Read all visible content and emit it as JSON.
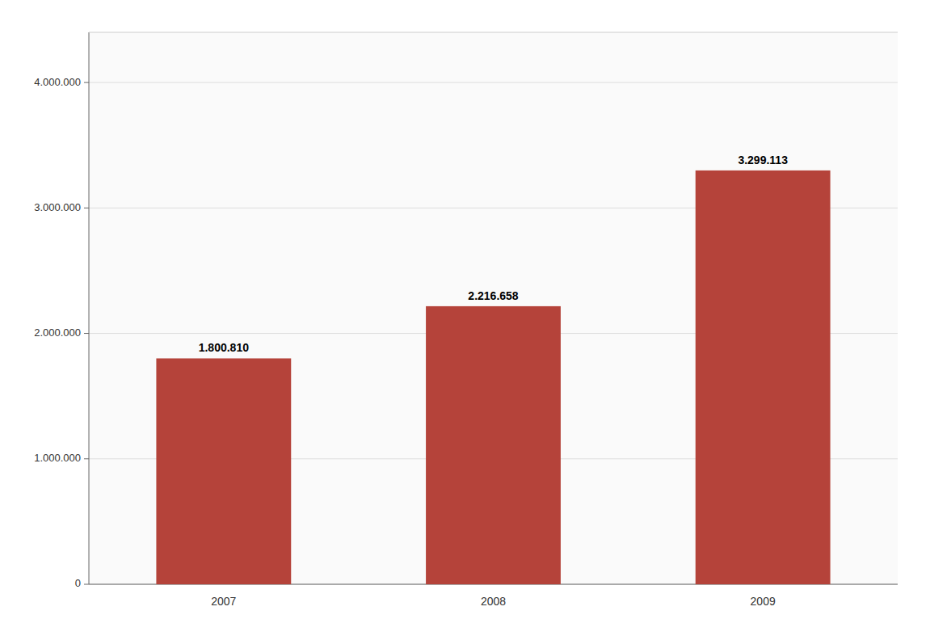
{
  "chart_data": {
    "type": "bar",
    "categories": [
      "2007",
      "2008",
      "2009"
    ],
    "values": [
      1800810,
      2216658,
      3299113
    ],
    "value_labels": [
      "1.800.810",
      "2.216.658",
      "3.299.113"
    ],
    "data_labels": true,
    "color": "#B5433A",
    "ylim": [
      0,
      4400000
    ],
    "yticks": [
      0,
      {
        "value": 1000000,
        "label": "1.000.000"
      },
      {
        "value": 2000000,
        "label": "2.000.000"
      },
      {
        "value": 3000000,
        "label": "3.000.000"
      },
      {
        "value": 4000000,
        "label": "4.000.000"
      }
    ],
    "grid": true
  }
}
